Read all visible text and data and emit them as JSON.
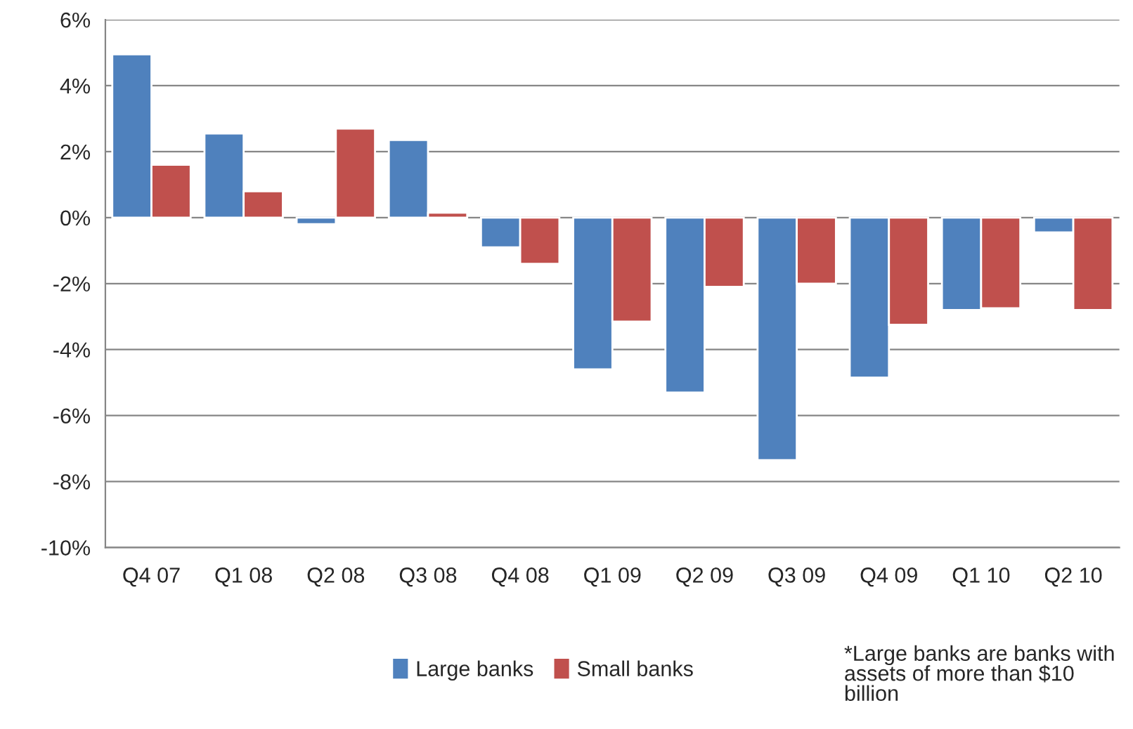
{
  "chart_data": {
    "type": "bar",
    "categories": [
      "Q4 07",
      "Q1 08",
      "Q2 08",
      "Q3 08",
      "Q4 08",
      "Q1 09",
      "Q2 09",
      "Q3 09",
      "Q4 09",
      "Q1 10",
      "Q2 10"
    ],
    "series": [
      {
        "name": "Large banks",
        "color": "#4f81bd",
        "values": [
          4.95,
          2.55,
          -0.2,
          2.35,
          -0.9,
          -4.6,
          -5.3,
          -7.35,
          -4.85,
          -2.8,
          -0.45
        ]
      },
      {
        "name": "Small banks",
        "color": "#c0504d",
        "values": [
          1.6,
          0.8,
          2.7,
          0.15,
          -1.4,
          -3.15,
          -2.1,
          -2.0,
          -3.25,
          -2.75,
          -2.8
        ]
      }
    ],
    "ylim": [
      -10,
      6
    ],
    "yticks": [
      {
        "value": -10,
        "label": "-10%"
      },
      {
        "value": -8,
        "label": "-8%"
      },
      {
        "value": -6,
        "label": "-6%"
      },
      {
        "value": -4,
        "label": "-4%"
      },
      {
        "value": -2,
        "label": "-2%"
      },
      {
        "value": 0,
        "label": "0%"
      },
      {
        "value": 2,
        "label": "2%"
      },
      {
        "value": 4,
        "label": "4%"
      },
      {
        "value": 6,
        "label": "6%"
      }
    ],
    "grid": "y",
    "legend": "bottom",
    "annotations": [
      "*Large banks are banks with assets of more than $10 billion"
    ]
  }
}
